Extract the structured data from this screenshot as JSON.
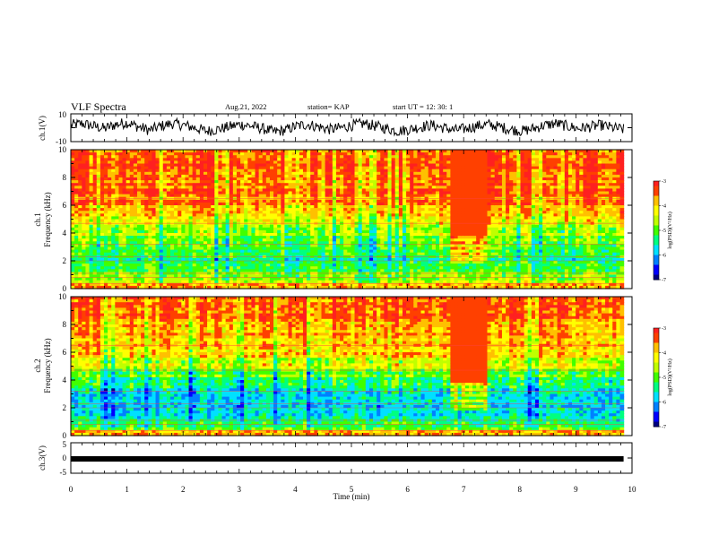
{
  "header": {
    "title": "VLF Spectra",
    "date": "Aug.21, 2022",
    "station": "station= KAP",
    "start": "start  UT =   12: 30: 1"
  },
  "chart_data": [
    {
      "type": "line",
      "panel": "ch1-waveform",
      "ylabel": "ch.1(V)",
      "ylim": [
        -10,
        10
      ],
      "yticks": [
        "10",
        "-10"
      ],
      "xlim": [
        0,
        10
      ],
      "data_end_min": 9.85,
      "samples": [
        0.3,
        0.5,
        0.2,
        -0.1,
        0.4,
        0.6,
        0.1,
        -0.3,
        0.2,
        0.5,
        0.3,
        0.0,
        -0.4,
        -0.2,
        0.1,
        0.4,
        0.2,
        -0.1,
        -0.5,
        -0.3,
        0.2,
        0.4,
        0.1,
        -0.2,
        0.0,
        0.3,
        0.5,
        0.2,
        -0.1,
        -0.4,
        -0.2,
        0.1,
        0.3,
        0.0,
        -0.3,
        -0.1,
        0.2,
        0.4,
        0.1,
        -0.2,
        -0.4,
        -0.1,
        0.3,
        0.5,
        0.2,
        -0.1,
        0.1,
        0.3,
        0.0,
        -0.2
      ]
    },
    {
      "type": "heatmap",
      "panel": "ch1-spectrogram",
      "ylabel": "ch.1\nFrequency (kHz)",
      "ylabel_lines": [
        "ch.1",
        "Frequency  (kHz)"
      ],
      "ylim": [
        0,
        10
      ],
      "yticks": [
        "0",
        "2",
        "4",
        "6",
        "8",
        "10"
      ],
      "xlim": [
        0,
        10
      ],
      "data_end_min": 9.85,
      "anomaly_window_min": [
        6.75,
        7.45
      ],
      "colorbar": {
        "label": "log(PSD)(V²/Hz)",
        "range": [
          -7,
          -3
        ],
        "ticks": [
          "-3",
          "-4",
          "-5",
          "-6",
          "-7"
        ]
      },
      "profile_khz": [
        0,
        1,
        2,
        3,
        4,
        5,
        6,
        8,
        10
      ],
      "profile_logpsd": [
        -4.2,
        -4.9,
        -5.3,
        -5.1,
        -4.6,
        -4.1,
        -3.6,
        -3.4,
        -3.4
      ]
    },
    {
      "type": "heatmap",
      "panel": "ch2-spectrogram",
      "ylabel": "ch.2\nFrequency (kHz)",
      "ylabel_lines": [
        "ch.2",
        "Frequency  (kHz)"
      ],
      "ylim": [
        0,
        10
      ],
      "yticks": [
        "0",
        "2",
        "4",
        "6",
        "8",
        "10"
      ],
      "xlim": [
        0,
        10
      ],
      "data_end_min": 9.85,
      "anomaly_window_min": [
        6.75,
        7.45
      ],
      "colorbar": {
        "label": "log(PSD)(V²/Hz)",
        "range": [
          -7,
          -3
        ],
        "ticks": [
          "-3",
          "-4",
          "-5",
          "-6",
          "-7"
        ]
      },
      "profile_khz": [
        0,
        1,
        2,
        3,
        4,
        5,
        6,
        8,
        10
      ],
      "profile_logpsd": [
        -4.4,
        -5.4,
        -5.6,
        -5.9,
        -5.2,
        -4.5,
        -4.0,
        -3.6,
        -3.5
      ]
    },
    {
      "type": "line",
      "panel": "ch3-waveform",
      "ylabel": "ch.3(V)",
      "ylim": [
        -5,
        5
      ],
      "yticks": [
        "5",
        "0",
        "-5"
      ],
      "xlim": [
        0,
        10
      ],
      "data_end_min": 9.85,
      "level": -0.3
    }
  ],
  "xaxis": {
    "label": "Time  (min)",
    "ticks": [
      "0",
      "1",
      "2",
      "3",
      "4",
      "5",
      "6",
      "7",
      "8",
      "9",
      "10"
    ]
  },
  "colors": {
    "scale": [
      "#000080",
      "#0000ff",
      "#0080ff",
      "#00e0ff",
      "#00ff80",
      "#40ff00",
      "#c0ff00",
      "#ffff00",
      "#ffc000",
      "#ff4000",
      "#ff2020",
      "#ffd0d0"
    ]
  }
}
